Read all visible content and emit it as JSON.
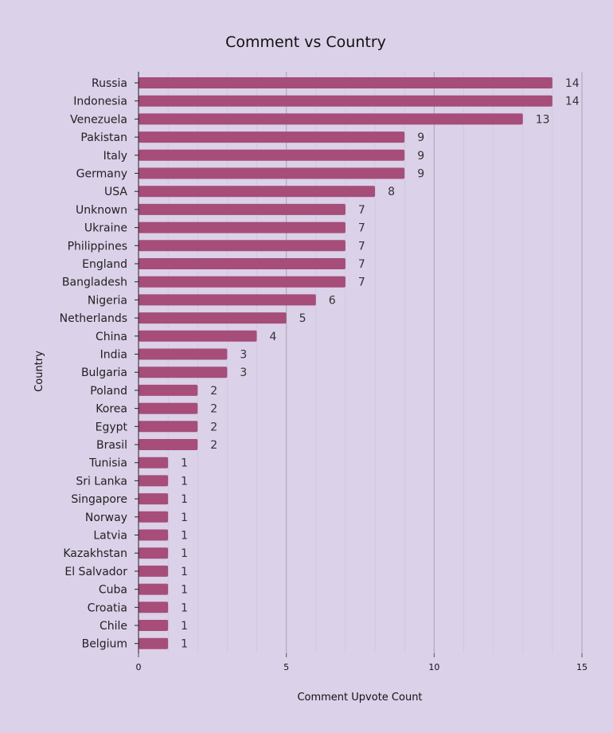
{
  "chart_data": {
    "type": "bar",
    "orientation": "horizontal",
    "title": "Comment vs Country",
    "xlabel": "Comment Upvote Count",
    "ylabel": "Country",
    "xlim": [
      0,
      15
    ],
    "x_ticks": [
      "0",
      "5",
      "10",
      "15"
    ],
    "grid": true,
    "bar_color": "#a64d79",
    "categories": [
      "Russia",
      "Indonesia",
      "Venezuela",
      "Pakistan",
      "Italy",
      "Germany",
      "USA",
      "Unknown",
      "Ukraine",
      "Philippines",
      "England",
      "Bangladesh",
      "Nigeria",
      "Netherlands",
      "China",
      "India",
      "Bulgaria",
      "Poland",
      "Korea",
      "Egypt",
      "Brasil",
      "Tunisia",
      "Sri Lanka",
      "Singapore",
      "Norway",
      "Latvia",
      "Kazakhstan",
      "El Salvador",
      "Cuba",
      "Croatia",
      "Chile",
      "Belgium"
    ],
    "values": [
      14,
      14,
      13,
      9,
      9,
      9,
      8,
      7,
      7,
      7,
      7,
      7,
      6,
      5,
      4,
      3,
      3,
      2,
      2,
      2,
      2,
      1,
      1,
      1,
      1,
      1,
      1,
      1,
      1,
      1,
      1,
      1
    ]
  }
}
